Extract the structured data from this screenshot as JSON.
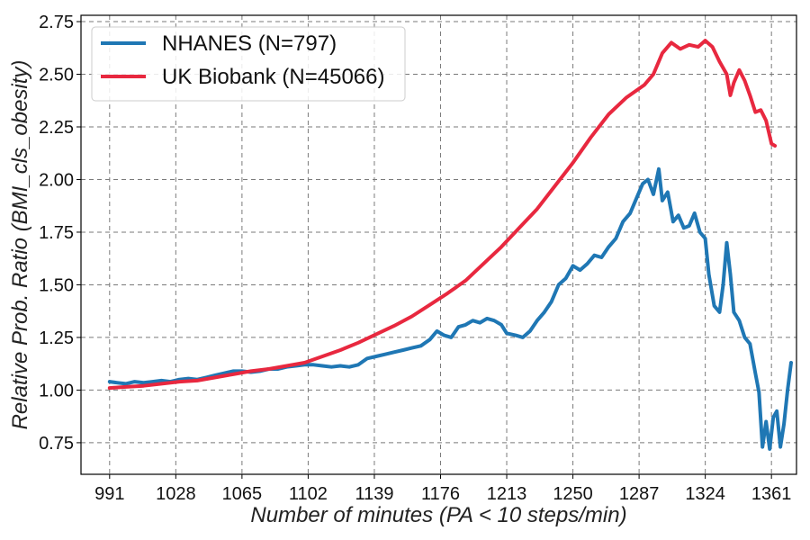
{
  "chart_data": {
    "type": "line",
    "xlabel": "Number of minutes (PA < 10 steps/min)",
    "ylabel": "Relative Prob. Ratio (BMI_cls_obesity)",
    "xlim": [
      975,
      1375
    ],
    "ylim": [
      0.6,
      2.78
    ],
    "x_ticks": [
      991,
      1028,
      1065,
      1102,
      1139,
      1176,
      1213,
      1250,
      1287,
      1324,
      1361
    ],
    "x_tick_labels": [
      "991",
      "1028",
      "1065",
      "1102",
      "1139",
      "1176",
      "1213",
      "1250",
      "1287",
      "1324",
      "1361"
    ],
    "y_ticks": [
      0.75,
      1.0,
      1.25,
      1.5,
      1.75,
      2.0,
      2.25,
      2.5,
      2.75
    ],
    "y_tick_labels": [
      "0.75",
      "1.00",
      "1.25",
      "1.50",
      "1.75",
      "2.00",
      "2.25",
      "2.50",
      "2.75"
    ],
    "grid": true,
    "legend_position": "top-left",
    "series": [
      {
        "name": "NHANES (N=797)",
        "color": "#1f77b4",
        "points": [
          [
            991,
            1.04
          ],
          [
            995,
            1.035
          ],
          [
            1000,
            1.03
          ],
          [
            1005,
            1.04
          ],
          [
            1010,
            1.035
          ],
          [
            1015,
            1.04
          ],
          [
            1020,
            1.045
          ],
          [
            1025,
            1.04
          ],
          [
            1030,
            1.05
          ],
          [
            1035,
            1.055
          ],
          [
            1040,
            1.05
          ],
          [
            1045,
            1.06
          ],
          [
            1050,
            1.07
          ],
          [
            1055,
            1.08
          ],
          [
            1060,
            1.09
          ],
          [
            1065,
            1.09
          ],
          [
            1070,
            1.085
          ],
          [
            1075,
            1.09
          ],
          [
            1080,
            1.1
          ],
          [
            1085,
            1.1
          ],
          [
            1090,
            1.11
          ],
          [
            1095,
            1.115
          ],
          [
            1100,
            1.12
          ],
          [
            1105,
            1.12
          ],
          [
            1110,
            1.115
          ],
          [
            1115,
            1.11
          ],
          [
            1120,
            1.115
          ],
          [
            1125,
            1.11
          ],
          [
            1130,
            1.12
          ],
          [
            1135,
            1.15
          ],
          [
            1140,
            1.16
          ],
          [
            1145,
            1.17
          ],
          [
            1150,
            1.18
          ],
          [
            1155,
            1.19
          ],
          [
            1160,
            1.2
          ],
          [
            1165,
            1.21
          ],
          [
            1170,
            1.24
          ],
          [
            1174,
            1.28
          ],
          [
            1178,
            1.26
          ],
          [
            1182,
            1.25
          ],
          [
            1186,
            1.3
          ],
          [
            1190,
            1.31
          ],
          [
            1194,
            1.33
          ],
          [
            1198,
            1.32
          ],
          [
            1202,
            1.34
          ],
          [
            1206,
            1.33
          ],
          [
            1210,
            1.31
          ],
          [
            1213,
            1.27
          ],
          [
            1218,
            1.26
          ],
          [
            1222,
            1.25
          ],
          [
            1226,
            1.28
          ],
          [
            1230,
            1.33
          ],
          [
            1234,
            1.37
          ],
          [
            1238,
            1.42
          ],
          [
            1242,
            1.5
          ],
          [
            1246,
            1.53
          ],
          [
            1250,
            1.59
          ],
          [
            1254,
            1.57
          ],
          [
            1258,
            1.6
          ],
          [
            1262,
            1.64
          ],
          [
            1266,
            1.63
          ],
          [
            1270,
            1.68
          ],
          [
            1274,
            1.72
          ],
          [
            1278,
            1.8
          ],
          [
            1282,
            1.84
          ],
          [
            1286,
            1.92
          ],
          [
            1289,
            1.98
          ],
          [
            1292,
            2.0
          ],
          [
            1295,
            1.93
          ],
          [
            1298,
            2.05
          ],
          [
            1300,
            1.9
          ],
          [
            1303,
            1.94
          ],
          [
            1306,
            1.8
          ],
          [
            1309,
            1.83
          ],
          [
            1312,
            1.77
          ],
          [
            1315,
            1.78
          ],
          [
            1318,
            1.84
          ],
          [
            1321,
            1.75
          ],
          [
            1324,
            1.72
          ],
          [
            1326,
            1.55
          ],
          [
            1329,
            1.4
          ],
          [
            1332,
            1.37
          ],
          [
            1334,
            1.5
          ],
          [
            1336,
            1.7
          ],
          [
            1338,
            1.55
          ],
          [
            1340,
            1.37
          ],
          [
            1343,
            1.33
          ],
          [
            1346,
            1.25
          ],
          [
            1349,
            1.22
          ],
          [
            1352,
            1.08
          ],
          [
            1354,
            0.99
          ],
          [
            1356,
            0.73
          ],
          [
            1358,
            0.85
          ],
          [
            1360,
            0.72
          ],
          [
            1362,
            0.87
          ],
          [
            1364,
            0.9
          ],
          [
            1366,
            0.73
          ],
          [
            1368,
            0.84
          ],
          [
            1370,
            1.0
          ],
          [
            1372,
            1.13
          ]
        ]
      },
      {
        "name": "UK Biobank (N=45066)",
        "color": "#e8283f",
        "points": [
          [
            991,
            1.01
          ],
          [
            1000,
            1.015
          ],
          [
            1010,
            1.02
          ],
          [
            1020,
            1.03
          ],
          [
            1030,
            1.04
          ],
          [
            1040,
            1.045
          ],
          [
            1050,
            1.06
          ],
          [
            1060,
            1.075
          ],
          [
            1070,
            1.09
          ],
          [
            1080,
            1.1
          ],
          [
            1090,
            1.115
          ],
          [
            1100,
            1.13
          ],
          [
            1110,
            1.16
          ],
          [
            1120,
            1.19
          ],
          [
            1130,
            1.225
          ],
          [
            1140,
            1.265
          ],
          [
            1150,
            1.305
          ],
          [
            1160,
            1.35
          ],
          [
            1170,
            1.405
          ],
          [
            1180,
            1.46
          ],
          [
            1190,
            1.52
          ],
          [
            1200,
            1.6
          ],
          [
            1210,
            1.68
          ],
          [
            1220,
            1.77
          ],
          [
            1230,
            1.86
          ],
          [
            1240,
            1.97
          ],
          [
            1250,
            2.08
          ],
          [
            1260,
            2.2
          ],
          [
            1270,
            2.31
          ],
          [
            1280,
            2.39
          ],
          [
            1290,
            2.45
          ],
          [
            1295,
            2.5
          ],
          [
            1300,
            2.6
          ],
          [
            1305,
            2.65
          ],
          [
            1310,
            2.62
          ],
          [
            1315,
            2.64
          ],
          [
            1320,
            2.63
          ],
          [
            1324,
            2.66
          ],
          [
            1328,
            2.63
          ],
          [
            1332,
            2.56
          ],
          [
            1336,
            2.5
          ],
          [
            1338,
            2.4
          ],
          [
            1340,
            2.46
          ],
          [
            1343,
            2.52
          ],
          [
            1346,
            2.47
          ],
          [
            1349,
            2.4
          ],
          [
            1352,
            2.32
          ],
          [
            1355,
            2.33
          ],
          [
            1358,
            2.28
          ],
          [
            1361,
            2.17
          ],
          [
            1363,
            2.16
          ]
        ]
      }
    ]
  }
}
